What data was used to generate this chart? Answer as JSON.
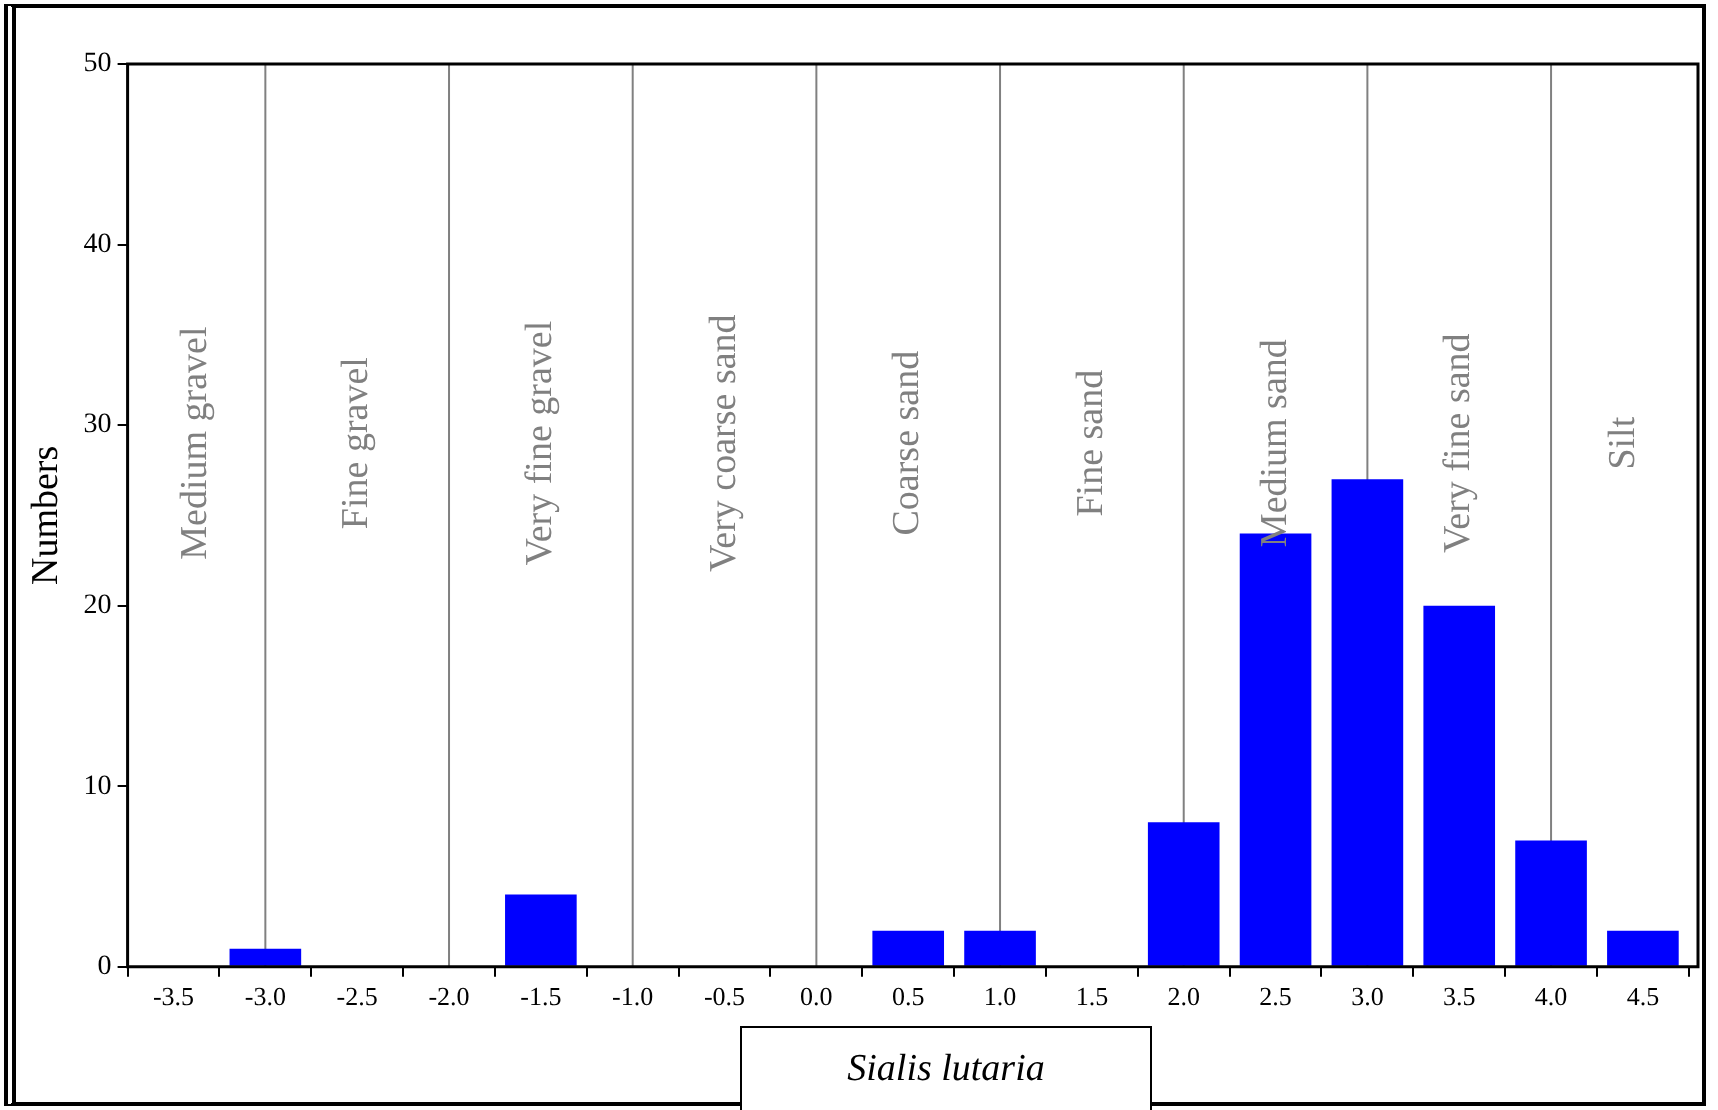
{
  "chart_data": {
    "type": "bar",
    "xlabel": "Sialis lutaria",
    "ylabel": "Numbers",
    "x": [
      -3.5,
      -3.0,
      -2.5,
      -2.0,
      -1.5,
      -1.0,
      -0.5,
      0.0,
      0.5,
      1.0,
      1.5,
      2.0,
      2.5,
      3.0,
      3.5,
      4.0,
      4.5
    ],
    "values": [
      0,
      1,
      0,
      0,
      4,
      0,
      0,
      0,
      2,
      2,
      0,
      8,
      24,
      27,
      20,
      7,
      2
    ],
    "color": "#0000ff",
    "xlim": [
      -3.75,
      4.8
    ],
    "xticks": [
      {
        "value": -3.5,
        "label": "-3.5"
      },
      {
        "value": -3,
        "label": "-3.0"
      },
      {
        "value": -2.5,
        "label": "-2.5"
      },
      {
        "value": -2,
        "label": "-2.0"
      },
      {
        "value": -1.5,
        "label": "-1.5"
      },
      {
        "value": -1,
        "label": "-1.0"
      },
      {
        "value": -0.5,
        "label": "-0.5"
      },
      {
        "value": 0,
        "label": "0.0"
      },
      {
        "value": 0.5,
        "label": "0.5"
      },
      {
        "value": 1,
        "label": "1.0"
      },
      {
        "value": 1.5,
        "label": "1.5"
      },
      {
        "value": 2,
        "label": "2.0"
      },
      {
        "value": 2.5,
        "label": "2.5"
      },
      {
        "value": 3,
        "label": "3.0"
      },
      {
        "value": 3.5,
        "label": "3.5"
      },
      {
        "value": 4,
        "label": "4.0"
      },
      {
        "value": 4.5,
        "label": "4.5"
      }
    ],
    "ylim": [
      0,
      50
    ],
    "yticks": [
      0,
      10,
      20,
      30,
      40,
      50
    ],
    "grid": false,
    "legend": false,
    "ref_lines": [
      {
        "axis": "x",
        "value": -3,
        "color": "#808080"
      },
      {
        "axis": "x",
        "value": -2,
        "color": "#808080"
      },
      {
        "axis": "x",
        "value": -1,
        "color": "#808080"
      },
      {
        "axis": "x",
        "value": 0,
        "color": "#808080"
      },
      {
        "axis": "x",
        "value": 1,
        "color": "#808080"
      },
      {
        "axis": "x",
        "value": 2,
        "color": "#808080"
      },
      {
        "axis": "x",
        "value": 3,
        "color": "#808080"
      },
      {
        "axis": "x",
        "value": 4,
        "color": "#808080"
      }
    ],
    "annotations": [
      "Medium gravel",
      "Fine gravel",
      "Very fine gravel",
      "Very coarse sand",
      "Coarse sand",
      "Fine sand",
      "Medium sand",
      "Very fine sand",
      "Silt"
    ]
  }
}
